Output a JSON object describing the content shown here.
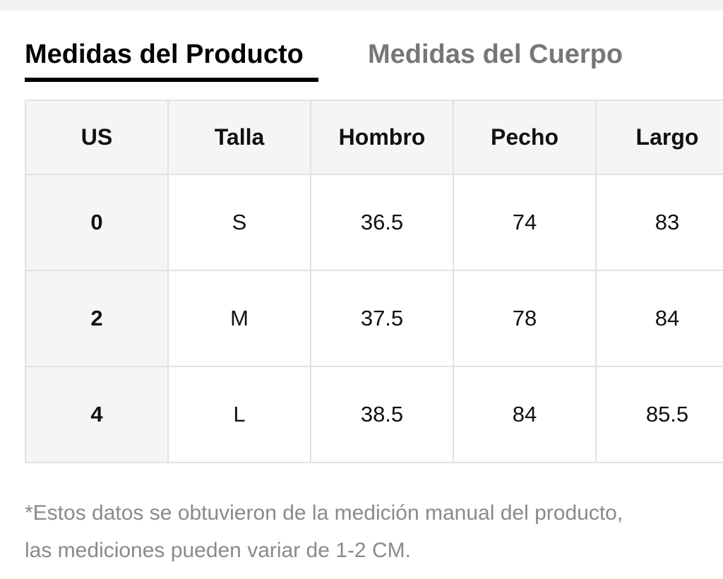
{
  "tabs": [
    "Medidas del Producto",
    "Medidas del Cuerpo"
  ],
  "table": {
    "headers": [
      "US",
      "Talla",
      "Hombro",
      "Pecho",
      "Largo"
    ],
    "rows": [
      [
        "0",
        "S",
        "36.5",
        "74",
        "83"
      ],
      [
        "2",
        "M",
        "37.5",
        "78",
        "84"
      ],
      [
        "4",
        "L",
        "38.5",
        "84",
        "85.5"
      ]
    ]
  },
  "note": {
    "lines": [
      "*Estos datos se obtuvieron de la medición manual del producto,",
      "las mediciones pueden variar de 1-2 CM."
    ]
  }
}
